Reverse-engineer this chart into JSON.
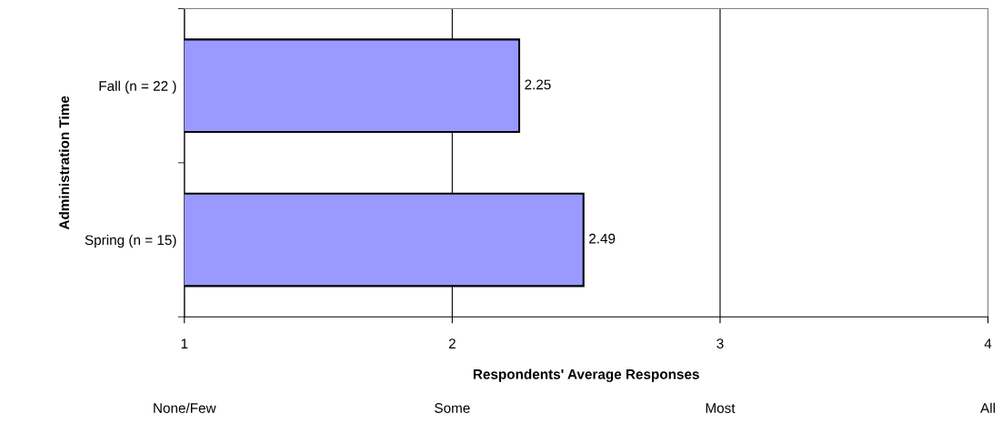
{
  "chart_data": {
    "type": "bar",
    "orientation": "horizontal",
    "xlabel": "Respondents' Average Responses",
    "ylabel": "Administration Time",
    "categories": [
      "Fall (n = 22 )",
      "Spring (n = 15)"
    ],
    "values": [
      2.25,
      2.49
    ],
    "color": "#9999ff",
    "data_labels": true,
    "xlim": [
      1,
      4
    ],
    "xticks": [
      1,
      2,
      3,
      4
    ],
    "grid": "x",
    "legend": false,
    "annotations": [
      "None/Few",
      "Some",
      "Most",
      "All"
    ]
  }
}
